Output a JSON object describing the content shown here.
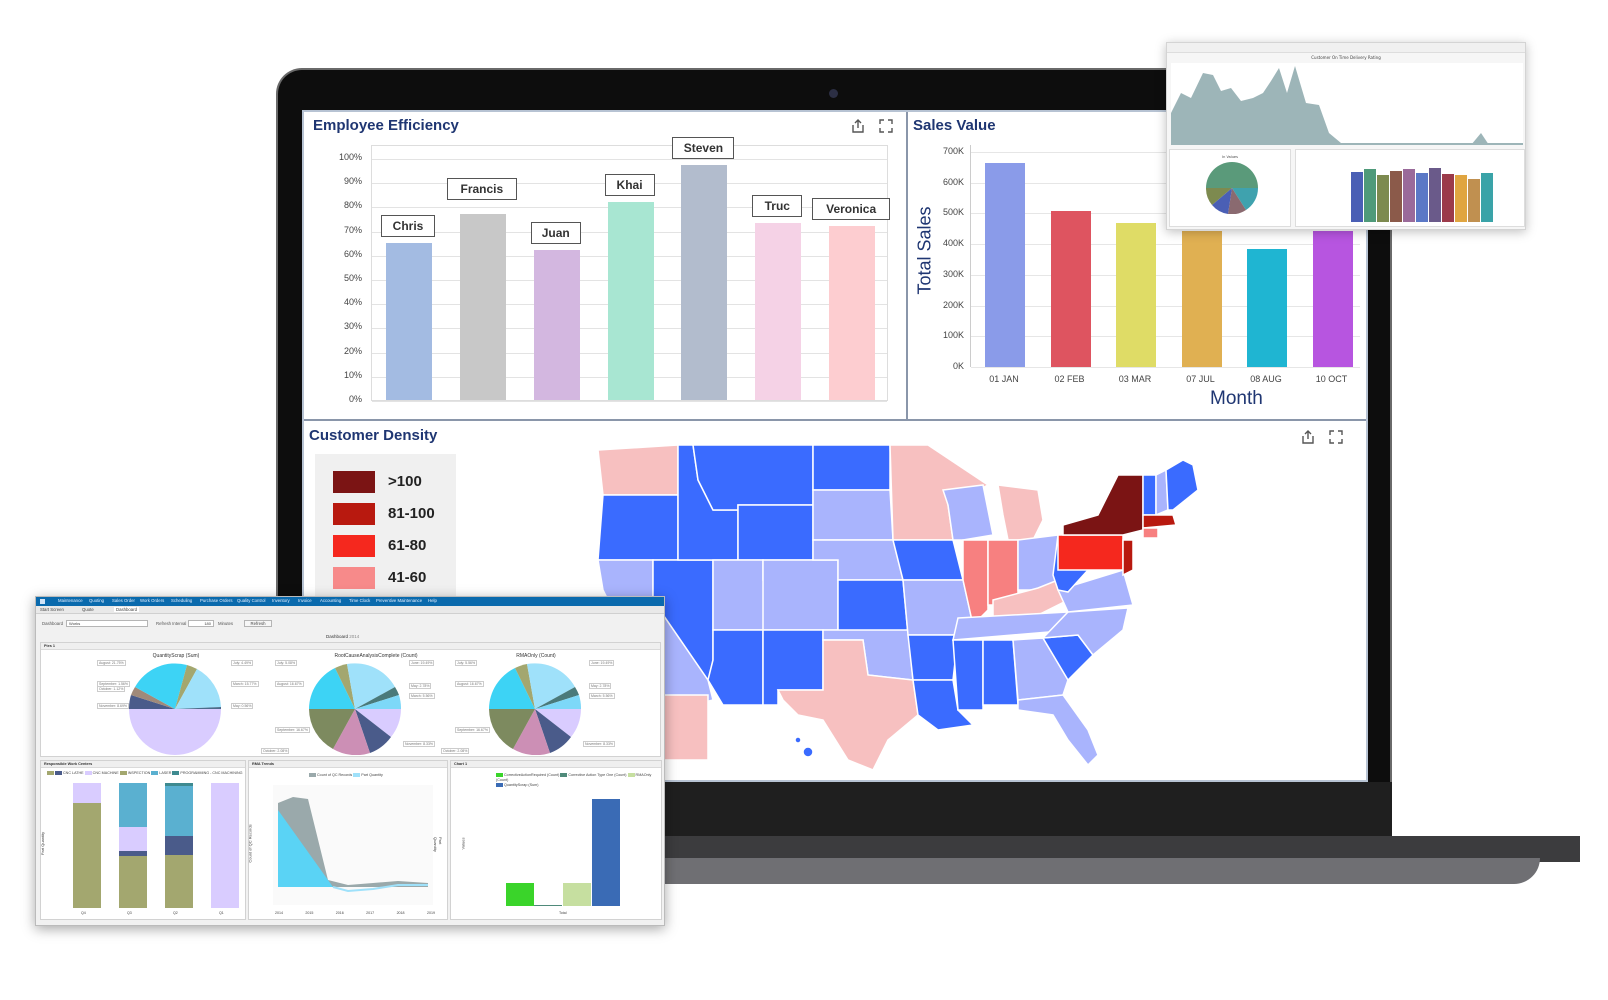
{
  "employee_efficiency": {
    "title": "Employee Efficiency",
    "share_icon": "share-icon",
    "expand_icon": "expand-icon",
    "y_ticks": [
      "100%",
      "90%",
      "80%",
      "70%",
      "60%",
      "50%",
      "40%",
      "30%",
      "20%",
      "10%",
      "0%"
    ]
  },
  "sales_value": {
    "title": "Sales Value",
    "ylabel": "Total Sales",
    "xlabel": "Month",
    "y_ticks": [
      "700K",
      "600K",
      "500K",
      "400K",
      "300K",
      "200K",
      "100K",
      "0K"
    ]
  },
  "customer_density": {
    "title": "Customer Density",
    "share_icon": "share-icon",
    "expand_icon": "expand-icon",
    "legend": [
      {
        "label": ">100",
        "color": "#7b1414"
      },
      {
        "label": "81-100",
        "color": "#b8190f"
      },
      {
        "label": "61-80",
        "color": "#f5281e"
      },
      {
        "label": "41-60",
        "color": "#f78a8a"
      }
    ],
    "map_colors": {
      "dark_blue": "#3a6bff",
      "light_blue": "#a9b4fd",
      "light_pink": "#f7c0c0",
      "salmon": "#f78080",
      "red": "#f5281e",
      "dark_red": "#b8190f",
      "maroon": "#7b1414"
    }
  },
  "chart_data": [
    {
      "type": "bar",
      "title": "Employee Efficiency",
      "categories": [
        "Chris",
        "Francis",
        "Juan",
        "Khai",
        "Steven",
        "Truc",
        "Veronica"
      ],
      "values": [
        65,
        77,
        62,
        82,
        97,
        73,
        72
      ],
      "colors": [
        "#a3bbe2",
        "#c8c8c8",
        "#d3b7e0",
        "#a8e6d2",
        "#b2bccd",
        "#f5d2e6",
        "#fdcdd0"
      ],
      "xlabel": "",
      "ylabel": "",
      "ylim": [
        0,
        100
      ],
      "unit": "%"
    },
    {
      "type": "bar",
      "title": "Sales Value",
      "categories": [
        "01 JAN",
        "02 FEB",
        "03 MAR",
        "07 JUL",
        "08 AUG",
        "10 OCT"
      ],
      "values": [
        665000,
        508000,
        468000,
        442000,
        383000,
        443000
      ],
      "colors": [
        "#8a9be9",
        "#de5460",
        "#dfdc66",
        "#e0b052",
        "#1fb5d2",
        "#b755e0"
      ],
      "xlabel": "Month",
      "ylabel": "Total Sales",
      "ylim": [
        0,
        700000
      ]
    }
  ],
  "floating_top_right": {
    "title": "Customer On Time Delivery Rating",
    "pie_title": "In Values",
    "area_color": "#9db5b8"
  },
  "app": {
    "menu": [
      "Maintenance",
      "Quoting",
      "Sales Order",
      "Work Orders",
      "Scheduling",
      "Purchase Orders",
      "Quality Control",
      "Inventory",
      "Invoice",
      "Accounting",
      "Time Clock",
      "Preventive Maintenance",
      "Help"
    ],
    "tabs": [
      "Start Screen",
      "Quote",
      "Dashboard"
    ],
    "toolbar": {
      "dashboard_label": "Dashboard",
      "dashboard_value": "Works",
      "refresh_interval_label": "Refresh Interval",
      "refresh_interval_value": "180",
      "minutes_label": "Minutes",
      "refresh_button": "Refresh"
    },
    "dashboard_title": "Dashboard",
    "dashboard_year": "2014",
    "pane1_title": "Pies 1",
    "pies": [
      {
        "title": "QuantityScrap (Sum)",
        "labels": [
          "August: 21.75%",
          "September: 1.56%",
          "October: 1.12%",
          "November: 8.69%",
          "July: 4.49%",
          "March: 15.77%",
          "May: 0.56%"
        ]
      },
      {
        "title": "RootCauseAnalysisComplete (Count)",
        "labels": [
          "July: 5.08%",
          "August: 16.67%",
          "September: 16.67%",
          "June: 19.49%",
          "May: 2.78%",
          "March: 5.56%",
          "November: 8.33%",
          "October: 2.08%"
        ]
      },
      {
        "title": "RMAOnly (Count)",
        "labels": [
          "July: 5.56%",
          "August: 16.67%",
          "September: 16.67%",
          "June: 19.49%",
          "May: 2.78%",
          "March: 5.56%",
          "November: 8.33%",
          "October: 2.08%"
        ]
      }
    ],
    "work_centers": {
      "title": "Responsible Work Centers",
      "legend": [
        "CNC LATHE",
        "CNC MACHINE",
        "INSPECTION",
        "LASER",
        "PROGRAMMING - CNC MACHINING"
      ],
      "ylabel": "Part Quantity",
      "categories": [
        "Q4",
        "Q3",
        "Q2",
        "Q1"
      ]
    },
    "rma_trends": {
      "title": "RMA Trends",
      "legend": [
        "Count of QC Records",
        "Part Quantity"
      ],
      "ylabel": "Count of QC Records",
      "y2label": "Part Quantity",
      "x": [
        "2014",
        "2015",
        "2016",
        "2017",
        "2018",
        "2019"
      ]
    },
    "chart1": {
      "title": "Chart 1",
      "legend": [
        "CorrectiveActionRequired (Count)",
        "Corrective Action Type One (Count)",
        "RMAOnly (Count)",
        "QuantityScrap (Sum)"
      ],
      "ylabel": "Values",
      "xlabel": "Total",
      "values": [
        35,
        1,
        35,
        178
      ]
    }
  }
}
